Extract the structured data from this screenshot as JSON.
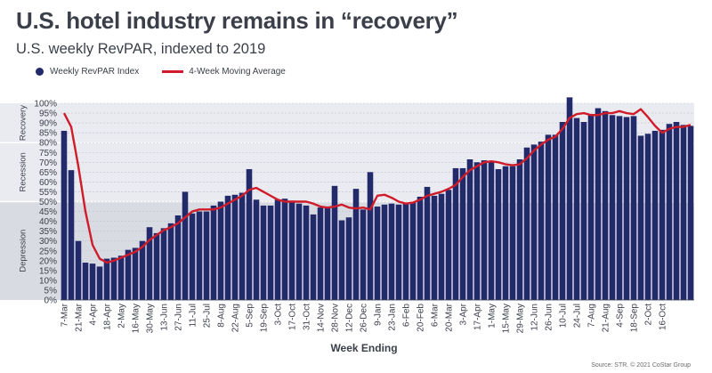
{
  "header": {
    "title": "U.S. hotel industry remains in “recovery”",
    "subtitle": "U.S. weekly RevPAR, indexed to 2019"
  },
  "legend": {
    "bar_label": "Weekly RevPAR Index",
    "line_label": "4-Week Moving Average"
  },
  "source": "Source: STR. © 2021 CoStar Group",
  "colors": {
    "bar": "#232a6b",
    "line": "#d01c2a",
    "band_top": "#eaebf0",
    "band_bottom": "#d9dbe2",
    "grid": "#bfc2cc"
  },
  "chart_data": {
    "type": "bar",
    "xlabel": "Week Ending",
    "ylabel": "",
    "ylim": [
      0,
      100
    ],
    "y_ticks": [
      "0%",
      "5%",
      "10%",
      "15%",
      "20%",
      "25%",
      "30%",
      "35%",
      "40%",
      "45%",
      "50%",
      "55%",
      "60%",
      "65%",
      "70%",
      "75%",
      "80%",
      "85%",
      "90%",
      "95%",
      "100%"
    ],
    "grid": true,
    "legend_position": "top-left",
    "bands": [
      {
        "label": "Recovery",
        "from": 80,
        "to": 100
      },
      {
        "label": "Recession",
        "from": 50,
        "to": 80
      },
      {
        "label": "Depression",
        "from": 0,
        "to": 50
      }
    ],
    "x_tick_labels": [
      "7-Mar",
      "21-Mar",
      "4-Apr",
      "18-Apr",
      "2-May",
      "16-May",
      "30-May",
      "13-Jun",
      "27-Jun",
      "11-Jul",
      "25-Jul",
      "8-Aug",
      "22-Aug",
      "5-Sep",
      "19-Sep",
      "3-Oct",
      "17-Oct",
      "31-Oct",
      "14-Nov",
      "28-Nov",
      "12-Dec",
      "26-Dec",
      "9-Jan",
      "23-Jan",
      "6-Feb",
      "20-Feb",
      "6-Mar",
      "20-Mar",
      "3-Apr",
      "17-Apr",
      "1-May",
      "15-May",
      "29-May",
      "12-Jun",
      "26-Jun",
      "10-Jul",
      "24-Jul",
      "7-Aug",
      "21-Aug",
      "4-Sep",
      "18-Sep",
      "2-Oct",
      "16-Oct"
    ],
    "series": [
      {
        "name": "Weekly RevPAR Index",
        "type": "bar",
        "values": [
          86,
          66,
          30,
          19,
          18.5,
          17,
          21,
          21.5,
          22.5,
          25.5,
          26.5,
          30,
          37,
          34,
          36.5,
          39,
          43,
          55,
          44,
          45,
          45,
          48,
          50,
          53,
          53.5,
          54.5,
          66.5,
          51,
          48,
          48,
          51,
          51.5,
          50.5,
          49,
          48,
          43.5,
          47,
          47,
          58,
          40.5,
          42,
          56.5,
          46,
          65,
          47.5,
          48.5,
          49,
          48.5,
          49,
          49.5,
          52.5,
          57.5,
          53,
          54,
          56,
          67,
          67,
          71.5,
          70,
          71,
          70.5,
          66.5,
          68,
          68,
          71.5,
          77.5,
          79,
          80.5,
          84,
          84,
          90.5,
          103,
          92.5,
          90.5,
          94,
          97.5,
          96,
          94,
          93.5,
          93,
          93.5,
          83.5,
          84.5,
          86,
          86.5,
          89.5,
          90.5,
          89,
          88.5
        ]
      },
      {
        "name": "4-Week Moving Average",
        "type": "line",
        "values": [
          95,
          88,
          68,
          45,
          28,
          21,
          19,
          20,
          21.5,
          23,
          24.5,
          27,
          30.5,
          33,
          35.5,
          37,
          39,
          42,
          45,
          46,
          46,
          46,
          47,
          49,
          51,
          53,
          56,
          57,
          55,
          53,
          51,
          50,
          50,
          50,
          50,
          49,
          47.5,
          47,
          47.5,
          48.5,
          47,
          46.5,
          47,
          46,
          53,
          53.5,
          52,
          50,
          49,
          49.5,
          51,
          53,
          54,
          55,
          56.5,
          58.5,
          62.5,
          66,
          68,
          70,
          70.5,
          70,
          69,
          68.5,
          69,
          72,
          76,
          79,
          81.5,
          83,
          87,
          92.5,
          94.5,
          95,
          94,
          94,
          95,
          95,
          96,
          95,
          94.5,
          97,
          93,
          88.5,
          85,
          87,
          88,
          88,
          89
        ]
      }
    ]
  }
}
